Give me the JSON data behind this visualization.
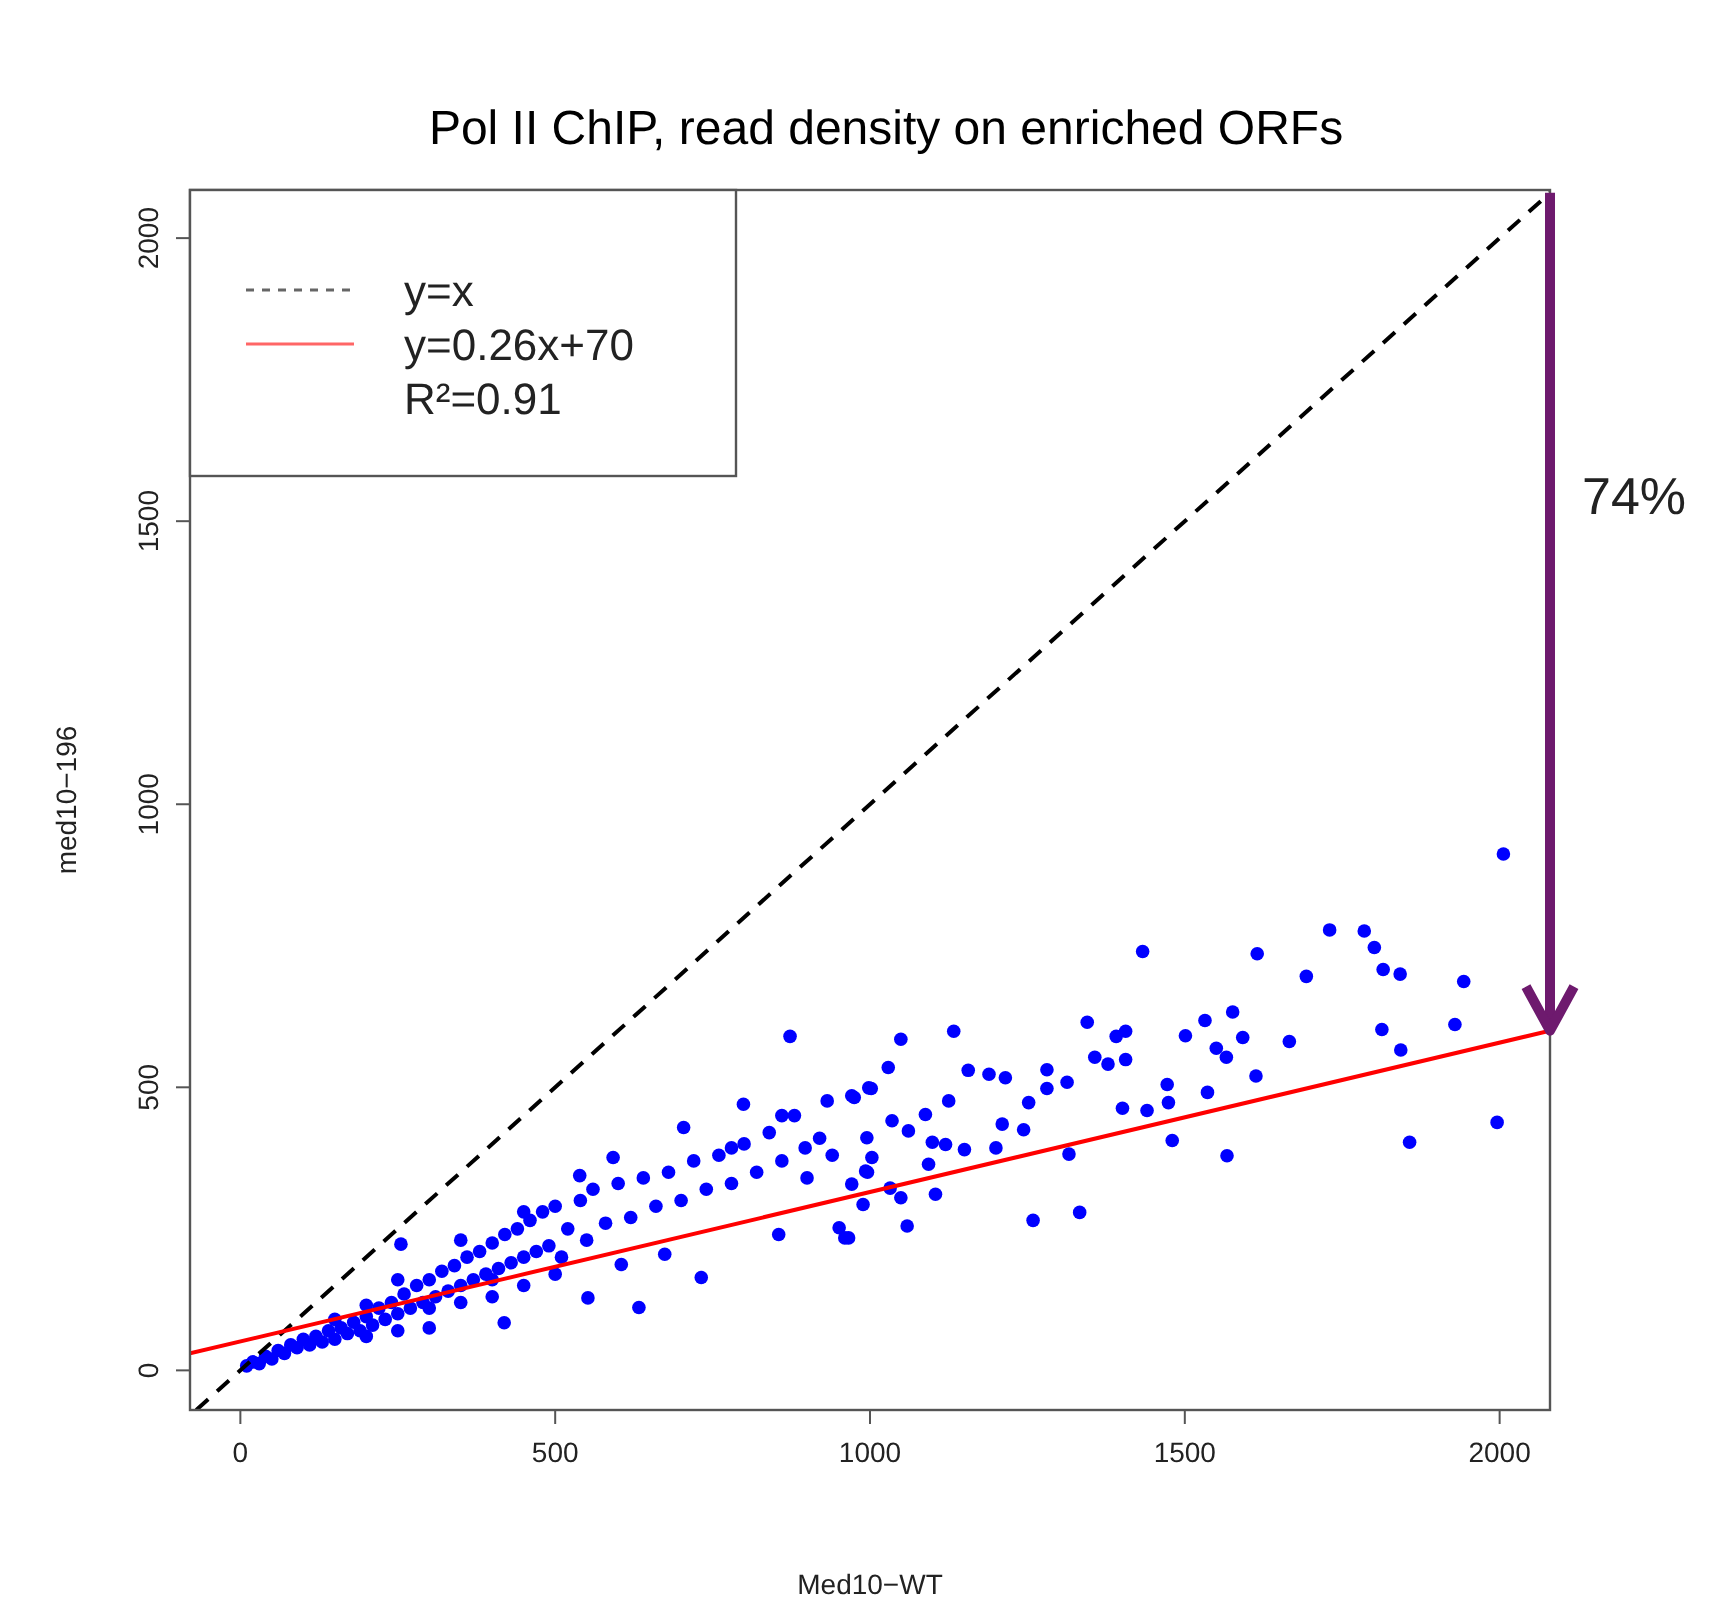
{
  "chart_data": {
    "type": "scatter",
    "title": "Pol II ChIP, read density on enriched ORFs",
    "xlabel": "Med10−WT",
    "ylabel": "med10−196",
    "xlim": [
      -80,
      2080
    ],
    "ylim": [
      -70,
      2085
    ],
    "xticks": [
      0,
      500,
      1000,
      1500,
      2000
    ],
    "yticks": [
      0,
      500,
      1000,
      1500,
      2000
    ],
    "legend": "top left",
    "annotations": [
      "R²=0.91",
      "74%"
    ],
    "series": [
      {
        "marker": "circle",
        "color": "#0000ff",
        "x": [
          10,
          20,
          30,
          40,
          50,
          60,
          70,
          80,
          90,
          100,
          110,
          120,
          130,
          140,
          150,
          160,
          170,
          180,
          190,
          200,
          210,
          220,
          230,
          240,
          250,
          260,
          270,
          280,
          290,
          300,
          310,
          320,
          330,
          340,
          350,
          360,
          370,
          380,
          390,
          400,
          410,
          420,
          430,
          440,
          450,
          460,
          470,
          480,
          490,
          500,
          510,
          520,
          540,
          550,
          560,
          580,
          600,
          620,
          640,
          660,
          680,
          700,
          720,
          740,
          760,
          780,
          800,
          820,
          840,
          860,
          880,
          900,
          920,
          940,
          150,
          200,
          250,
          300,
          350,
          400,
          450,
          300,
          350,
          400,
          450,
          500,
          250,
          200,
          873,
          799,
          860,
          704,
          592,
          539,
          255,
          419,
          633,
          552,
          732,
          855,
          960,
          951,
          932,
          971,
          998,
          993,
          780,
          897,
          605,
          674,
          2006,
          1730,
          1785,
          1801,
          1815,
          1842,
          1943,
          1693,
          1615,
          1433,
          1929,
          1813,
          1843,
          1996,
          1857,
          1666,
          1613,
          1592,
          1576,
          1532,
          1550,
          1566,
          1536,
          1567,
          1501,
          1480,
          1472,
          1474,
          1440,
          1401,
          1406,
          1378,
          1357,
          1391,
          1406,
          1345,
          1333,
          1259,
          1316,
          1313,
          1281,
          1281,
          1252,
          1244,
          1210,
          1215,
          1189,
          1156,
          1133,
          1049,
          1029,
          1002,
          975,
          1200,
          1150,
          1120,
          1125,
          1088,
          1099,
          1093,
          1104,
          1059,
          1049,
          1032,
          995,
          1003,
          996,
          966,
          989,
          971,
          1061,
          1035
        ],
        "values": [
          8,
          15,
          12,
          25,
          20,
          35,
          30,
          45,
          40,
          55,
          45,
          60,
          50,
          70,
          55,
          75,
          65,
          85,
          70,
          95,
          80,
          110,
          90,
          120,
          100,
          135,
          110,
          150,
          120,
          160,
          130,
          175,
          140,
          185,
          150,
          200,
          160,
          210,
          170,
          225,
          180,
          240,
          190,
          250,
          200,
          265,
          210,
          280,
          220,
          290,
          200,
          250,
          300,
          230,
          320,
          260,
          330,
          270,
          340,
          290,
          350,
          300,
          370,
          320,
          380,
          330,
          400,
          350,
          420,
          370,
          450,
          340,
          410,
          380,
          90,
          60,
          160,
          110,
          230,
          160,
          280,
          75,
          120,
          130,
          150,
          170,
          70,
          115,
          590,
          470,
          450,
          429,
          376,
          344,
          223,
          84,
          111,
          128,
          164,
          240,
          234,
          252,
          476,
          485,
          499,
          352,
          393,
          393,
          187,
          205,
          912,
          778,
          776,
          747,
          708,
          700,
          687,
          696,
          736,
          740,
          611,
          602,
          566,
          438,
          403,
          581,
          520,
          588,
          633,
          618,
          569,
          553,
          491,
          379,
          591,
          406,
          505,
          473,
          459,
          463,
          549,
          541,
          553,
          590,
          599,
          615,
          279,
          265,
          382,
          509,
          531,
          498,
          473,
          425,
          435,
          517,
          523,
          530,
          599,
          585,
          535,
          498,
          482,
          393,
          390,
          399,
          476,
          452,
          403,
          364,
          311,
          255,
          305,
          322,
          411,
          376,
          350,
          234,
          293,
          329,
          423,
          441
        ]
      },
      {
        "type": "line",
        "name": "y=x",
        "color": "#000000",
        "line_style": "dashed",
        "x": [
          -70,
          2080
        ],
        "values": [
          -70,
          2080
        ]
      },
      {
        "type": "line",
        "name": "y=0.26x+70",
        "color": "#ff0000",
        "line_style": "solid",
        "x": [
          -80,
          2080
        ],
        "values": [
          30,
          600
        ]
      }
    ]
  }
}
